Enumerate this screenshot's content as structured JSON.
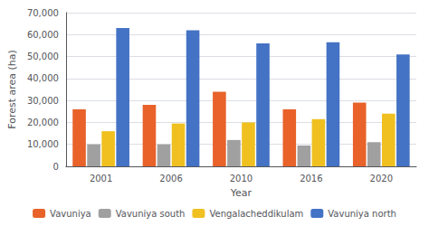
{
  "chart_data": {
    "type": "bar",
    "xlabel": "Year",
    "ylabel": "Forest area (ha)",
    "categories": [
      "2001",
      "2006",
      "2010",
      "2016",
      "2020"
    ],
    "series": [
      {
        "name": "Vavuniya",
        "color": "#E8622A",
        "values": [
          26000,
          28000,
          34000,
          26000,
          29000
        ]
      },
      {
        "name": "Vavuniya south",
        "color": "#A0A0A0",
        "values": [
          10000,
          10000,
          12000,
          9500,
          11000
        ]
      },
      {
        "name": "Vengalacheddikulam",
        "color": "#F0C020",
        "values": [
          16000,
          19500,
          20000,
          21500,
          24000
        ]
      },
      {
        "name": "Vavuniya north",
        "color": "#4472C4",
        "values": [
          63000,
          62000,
          56000,
          56500,
          51000
        ]
      }
    ],
    "ylim": [
      0,
      70000
    ],
    "yticks": [
      0,
      {
        "value": 10000,
        "label": "10,000"
      },
      {
        "value": 20000,
        "label": "20,000"
      },
      {
        "value": 30000,
        "label": "30,000"
      },
      {
        "value": 40000,
        "label": "40,000"
      },
      {
        "value": 50000,
        "label": "50,000"
      },
      {
        "value": 60000,
        "label": "60,000"
      },
      {
        "value": 70000,
        "label": "70,000"
      }
    ],
    "grid": true,
    "legend": "bottom"
  }
}
